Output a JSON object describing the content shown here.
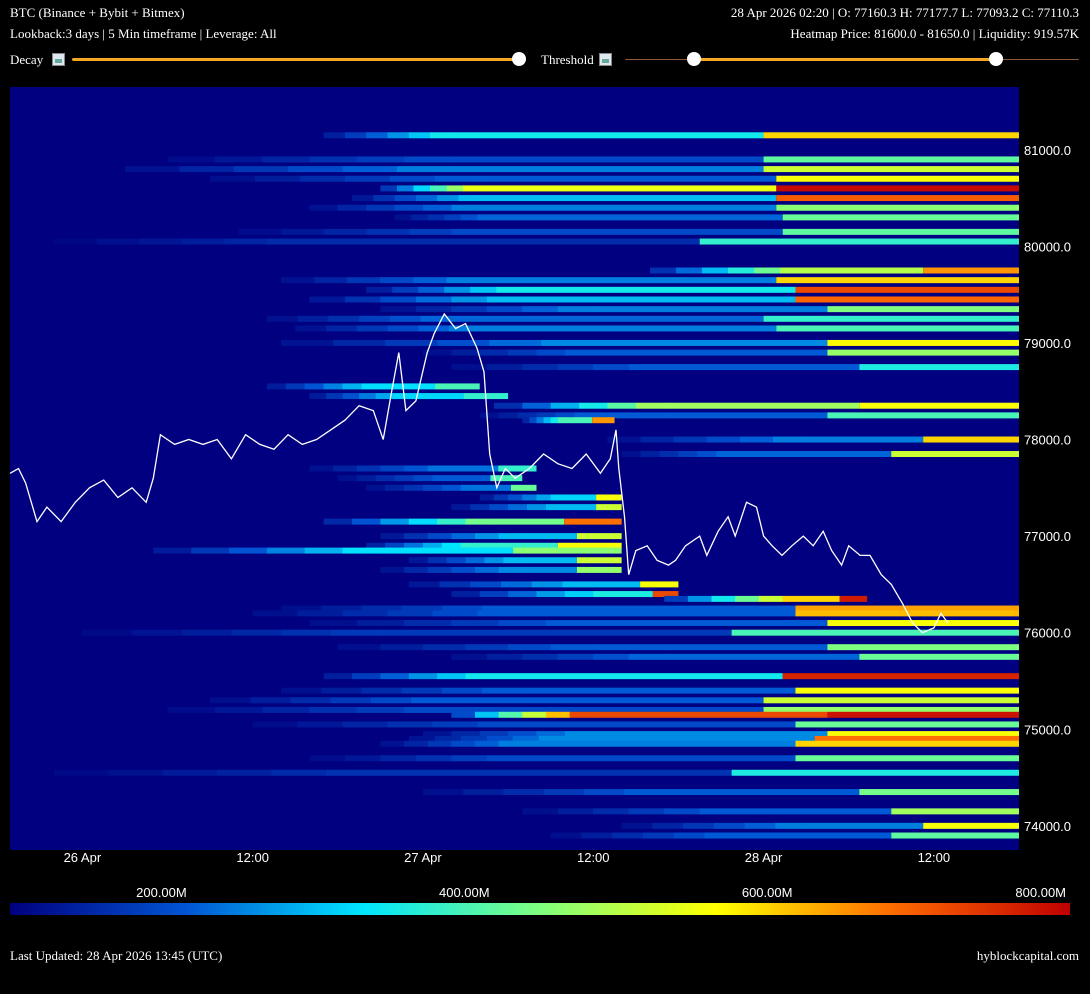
{
  "header": {
    "title": "BTC (Binance + Bybit + Bitmex)",
    "ohlc": "28 Apr 2026 02:20 | O: 77160.3 H: 77177.7 L: 77093.2 C: 77110.3",
    "settings": "Lookback:3 days | 5 Min timeframe | Leverage: All",
    "heatmap_info": "Heatmap Price: 81600.0 - 81650.0 | Liquidity: 919.57K"
  },
  "controls": {
    "decay_label": "Decay",
    "decay_value": 1.0,
    "threshold_label": "Threshold",
    "threshold_range": [
      0.15,
      0.82
    ]
  },
  "footer": {
    "last_updated": "Last Updated: 28 Apr 2026 13:45 (UTC)",
    "brand": "hyblockcapital.com"
  },
  "colors": {
    "background": "#000080",
    "slider": "#f5a623",
    "price_line": "#ffffff"
  },
  "chart_data": {
    "type": "heatmap",
    "title": "",
    "ylim": [
      73750,
      81650
    ],
    "y_ticks": [
      74000,
      75000,
      76000,
      77000,
      78000,
      79000,
      80000,
      81000
    ],
    "y_tick_labels": [
      "74000.0",
      "75000.0",
      "76000.0",
      "77000.0",
      "78000.0",
      "79000.0",
      "80000.0",
      "81000.0"
    ],
    "x_tick_labels": [
      "26 Apr",
      "12:00",
      "27 Apr",
      "12:00",
      "28 Apr",
      "12:00"
    ],
    "x_tick_hours": [
      24,
      36,
      48,
      60,
      72,
      84
    ],
    "x_range_hours": [
      18.9,
      90
    ],
    "colorbar": {
      "labels": [
        "200.00M",
        "400.00M",
        "600.00M",
        "800.00M"
      ],
      "values": [
        200,
        400,
        600,
        800
      ],
      "range": [
        100,
        800
      ],
      "stops": [
        "#00007f",
        "#0055d4",
        "#00e5ff",
        "#7fff7f",
        "#ffff00",
        "#ff6a00",
        "#c00000"
      ]
    },
    "price_series": [
      [
        18.9,
        77650
      ],
      [
        19.5,
        77700
      ],
      [
        20,
        77550
      ],
      [
        20.8,
        77150
      ],
      [
        21.5,
        77300
      ],
      [
        22.5,
        77150
      ],
      [
        23.5,
        77350
      ],
      [
        24.5,
        77500
      ],
      [
        25.5,
        77580
      ],
      [
        26.5,
        77400
      ],
      [
        27.5,
        77500
      ],
      [
        28.5,
        77350
      ],
      [
        29,
        77600
      ],
      [
        29.5,
        78050
      ],
      [
        30.5,
        77950
      ],
      [
        31.5,
        78000
      ],
      [
        32.5,
        77950
      ],
      [
        33.5,
        78000
      ],
      [
        34.5,
        77800
      ],
      [
        35.5,
        78050
      ],
      [
        36.5,
        77950
      ],
      [
        37.5,
        77900
      ],
      [
        38.5,
        78050
      ],
      [
        39.5,
        77950
      ],
      [
        40.5,
        78000
      ],
      [
        41.5,
        78100
      ],
      [
        42.5,
        78200
      ],
      [
        43.5,
        78350
      ],
      [
        44.5,
        78300
      ],
      [
        45.2,
        78000
      ],
      [
        45.8,
        78500
      ],
      [
        46.3,
        78900
      ],
      [
        46.8,
        78300
      ],
      [
        47.5,
        78400
      ],
      [
        48.3,
        78900
      ],
      [
        48.8,
        79100
      ],
      [
        49.5,
        79300
      ],
      [
        50.3,
        79150
      ],
      [
        51,
        79200
      ],
      [
        51.8,
        78950
      ],
      [
        52.3,
        78700
      ],
      [
        52.7,
        77850
      ],
      [
        53.2,
        77500
      ],
      [
        53.8,
        77700
      ],
      [
        54.5,
        77600
      ],
      [
        55.5,
        77700
      ],
      [
        56.5,
        77850
      ],
      [
        57.5,
        77750
      ],
      [
        58.5,
        77700
      ],
      [
        59.5,
        77850
      ],
      [
        60.5,
        77650
      ],
      [
        61.2,
        77800
      ],
      [
        61.6,
        78100
      ],
      [
        61.8,
        77700
      ],
      [
        62.2,
        77200
      ],
      [
        62.5,
        76600
      ],
      [
        63,
        76850
      ],
      [
        63.8,
        76900
      ],
      [
        64.5,
        76750
      ],
      [
        65.3,
        76700
      ],
      [
        65.8,
        76750
      ],
      [
        66.5,
        76900
      ],
      [
        67.5,
        77000
      ],
      [
        68,
        76800
      ],
      [
        68.8,
        77050
      ],
      [
        69.5,
        77200
      ],
      [
        70,
        77000
      ],
      [
        70.8,
        77350
      ],
      [
        71.5,
        77300
      ],
      [
        72,
        77000
      ],
      [
        72.6,
        76900
      ],
      [
        73.3,
        76800
      ],
      [
        74,
        76900
      ],
      [
        74.8,
        77000
      ],
      [
        75.5,
        76900
      ],
      [
        76.2,
        77050
      ],
      [
        76.8,
        76850
      ],
      [
        77.5,
        76700
      ],
      [
        78,
        76900
      ],
      [
        78.8,
        76800
      ],
      [
        79.5,
        76800
      ],
      [
        80.3,
        76600
      ],
      [
        81,
        76500
      ],
      [
        81.8,
        76300
      ],
      [
        82.5,
        76100
      ],
      [
        83.2,
        76000
      ],
      [
        84,
        76050
      ],
      [
        84.5,
        76200
      ],
      [
        85,
        76100
      ]
    ],
    "liquidity_bands": [
      {
        "price": 81150,
        "start": 41,
        "mid": 50,
        "end": 90,
        "v_start": 350,
        "v_end": 600
      },
      {
        "price": 80900,
        "start": 30,
        "mid": 50,
        "end": 90,
        "v_start": 200,
        "v_end": 420
      },
      {
        "price": 80800,
        "start": 27,
        "mid": 50,
        "end": 90,
        "v_start": 250,
        "v_end": 520
      },
      {
        "price": 80700,
        "start": 33,
        "mid": 52,
        "end": 90,
        "v_start": 220,
        "v_end": 560
      },
      {
        "price": 80600,
        "start": 45,
        "mid": 52,
        "end": 90,
        "v_start": 550,
        "v_end": 790
      },
      {
        "price": 80500,
        "start": 43,
        "mid": 52,
        "end": 90,
        "v_start": 300,
        "v_end": 700
      },
      {
        "price": 80400,
        "start": 40,
        "mid": 52,
        "end": 90,
        "v_start": 250,
        "v_end": 460
      },
      {
        "price": 80300,
        "start": 46,
        "mid": 53,
        "end": 90,
        "v_start": 230,
        "v_end": 430
      },
      {
        "price": 80150,
        "start": 35,
        "mid": 53,
        "end": 90,
        "v_start": 200,
        "v_end": 420
      },
      {
        "price": 80050,
        "start": 22,
        "mid": 40,
        "end": 90,
        "v_start": 160,
        "v_end": 380
      },
      {
        "price": 79750,
        "start": 64,
        "mid": 75,
        "end": 90,
        "v_start": 500,
        "v_end": 650
      },
      {
        "price": 79650,
        "start": 38,
        "mid": 52,
        "end": 90,
        "v_start": 250,
        "v_end": 600
      },
      {
        "price": 79550,
        "start": 44,
        "mid": 55,
        "end": 90,
        "v_start": 350,
        "v_end": 720
      },
      {
        "price": 79450,
        "start": 40,
        "mid": 55,
        "end": 90,
        "v_start": 300,
        "v_end": 690
      },
      {
        "price": 79350,
        "start": 45,
        "mid": 60,
        "end": 90,
        "v_start": 250,
        "v_end": 450
      },
      {
        "price": 79250,
        "start": 37,
        "mid": 50,
        "end": 90,
        "v_start": 230,
        "v_end": 380
      },
      {
        "price": 79150,
        "start": 39,
        "mid": 52,
        "end": 90,
        "v_start": 250,
        "v_end": 400
      },
      {
        "price": 79000,
        "start": 38,
        "mid": 60,
        "end": 90,
        "v_start": 260,
        "v_end": 570
      },
      {
        "price": 78900,
        "start": 48,
        "mid": 60,
        "end": 90,
        "v_start": 220,
        "v_end": 470
      },
      {
        "price": 78750,
        "start": 50,
        "mid": 65,
        "end": 90,
        "v_start": 220,
        "v_end": 360
      },
      {
        "price": 78550,
        "start": 37,
        "mid": 45,
        "end": 52,
        "v_start": 330,
        "v_end": 400
      },
      {
        "price": 78450,
        "start": 40,
        "mid": 47,
        "end": 54,
        "v_start": 320,
        "v_end": 380
      },
      {
        "price": 78350,
        "start": 53,
        "mid": 65,
        "end": 90,
        "v_start": 480,
        "v_end": 560
      },
      {
        "price": 78250,
        "start": 52,
        "mid": 60,
        "end": 90,
        "v_start": 220,
        "v_end": 400
      },
      {
        "price": 78200,
        "start": 55,
        "mid": 58,
        "end": 61.5,
        "v_start": 400,
        "v_end": 650
      },
      {
        "price": 78000,
        "start": 61,
        "mid": 75,
        "end": 90,
        "v_start": 250,
        "v_end": 600
      },
      {
        "price": 77850,
        "start": 62,
        "mid": 70,
        "end": 90,
        "v_start": 230,
        "v_end": 520
      },
      {
        "price": 77700,
        "start": 40,
        "mid": 50,
        "end": 56,
        "v_start": 240,
        "v_end": 380
      },
      {
        "price": 77600,
        "start": 42,
        "mid": 50,
        "end": 55,
        "v_start": 220,
        "v_end": 400
      },
      {
        "price": 77500,
        "start": 44,
        "mid": 52,
        "end": 56,
        "v_start": 240,
        "v_end": 430
      },
      {
        "price": 77400,
        "start": 52,
        "mid": 58,
        "end": 62,
        "v_start": 320,
        "v_end": 560
      },
      {
        "price": 77300,
        "start": 50,
        "mid": 58,
        "end": 62,
        "v_start": 300,
        "v_end": 520
      },
      {
        "price": 77150,
        "start": 41,
        "mid": 53,
        "end": 62,
        "v_start": 440,
        "v_end": 680
      },
      {
        "price": 77000,
        "start": 45,
        "mid": 55,
        "end": 62,
        "v_start": 300,
        "v_end": 520
      },
      {
        "price": 76900,
        "start": 44,
        "mid": 52,
        "end": 62,
        "v_start": 380,
        "v_end": 560
      },
      {
        "price": 76850,
        "start": 29,
        "mid": 45,
        "end": 62,
        "v_start": 330,
        "v_end": 460
      },
      {
        "price": 76750,
        "start": 47,
        "mid": 55,
        "end": 62,
        "v_start": 300,
        "v_end": 520
      },
      {
        "price": 76650,
        "start": 45,
        "mid": 55,
        "end": 62,
        "v_start": 260,
        "v_end": 470
      },
      {
        "price": 76500,
        "start": 47,
        "mid": 60,
        "end": 66,
        "v_start": 300,
        "v_end": 560
      },
      {
        "price": 76400,
        "start": 50,
        "mid": 62,
        "end": 66,
        "v_start": 360,
        "v_end": 720
      },
      {
        "price": 76350,
        "start": 65,
        "mid": 75,
        "end": 79.3,
        "v_start": 600,
        "v_end": 770
      },
      {
        "price": 76250,
        "start": 38,
        "mid": 55,
        "end": 90,
        "v_start": 220,
        "v_end": 640
      },
      {
        "price": 76200,
        "start": 36,
        "mid": 55,
        "end": 90,
        "v_start": 220,
        "v_end": 620
      },
      {
        "price": 76100,
        "start": 40,
        "mid": 60,
        "end": 90,
        "v_start": 220,
        "v_end": 560
      },
      {
        "price": 76000,
        "start": 24,
        "mid": 45,
        "end": 90,
        "v_start": 180,
        "v_end": 400
      },
      {
        "price": 75850,
        "start": 42,
        "mid": 60,
        "end": 90,
        "v_start": 220,
        "v_end": 450
      },
      {
        "price": 75750,
        "start": 50,
        "mid": 65,
        "end": 90,
        "v_start": 230,
        "v_end": 430
      },
      {
        "price": 75550,
        "start": 41,
        "mid": 53,
        "end": 90,
        "v_start": 350,
        "v_end": 760
      },
      {
        "price": 75400,
        "start": 38,
        "mid": 55,
        "end": 90,
        "v_start": 220,
        "v_end": 560
      },
      {
        "price": 75300,
        "start": 33,
        "mid": 50,
        "end": 90,
        "v_start": 220,
        "v_end": 520
      },
      {
        "price": 75200,
        "start": 30,
        "mid": 50,
        "end": 90,
        "v_start": 200,
        "v_end": 470
      },
      {
        "price": 75150,
        "start": 50,
        "mid": 60,
        "end": 90,
        "v_start": 720,
        "v_end": 780
      },
      {
        "price": 75050,
        "start": 36,
        "mid": 55,
        "end": 90,
        "v_start": 200,
        "v_end": 430
      },
      {
        "price": 74950,
        "start": 48,
        "mid": 60,
        "end": 90,
        "v_start": 260,
        "v_end": 560
      },
      {
        "price": 74900,
        "start": 47,
        "mid": 58,
        "end": 90,
        "v_start": 260,
        "v_end": 680
      },
      {
        "price": 74850,
        "start": 45,
        "mid": 55,
        "end": 90,
        "v_start": 250,
        "v_end": 600
      },
      {
        "price": 74700,
        "start": 40,
        "mid": 55,
        "end": 90,
        "v_start": 200,
        "v_end": 430
      },
      {
        "price": 74550,
        "start": 22,
        "mid": 45,
        "end": 90,
        "v_start": 170,
        "v_end": 360
      },
      {
        "price": 74350,
        "start": 48,
        "mid": 65,
        "end": 90,
        "v_start": 220,
        "v_end": 440
      },
      {
        "price": 74150,
        "start": 55,
        "mid": 70,
        "end": 90,
        "v_start": 220,
        "v_end": 480
      },
      {
        "price": 74000,
        "start": 62,
        "mid": 75,
        "end": 90,
        "v_start": 250,
        "v_end": 560
      },
      {
        "price": 73900,
        "start": 57,
        "mid": 70,
        "end": 90,
        "v_start": 220,
        "v_end": 420
      }
    ]
  }
}
